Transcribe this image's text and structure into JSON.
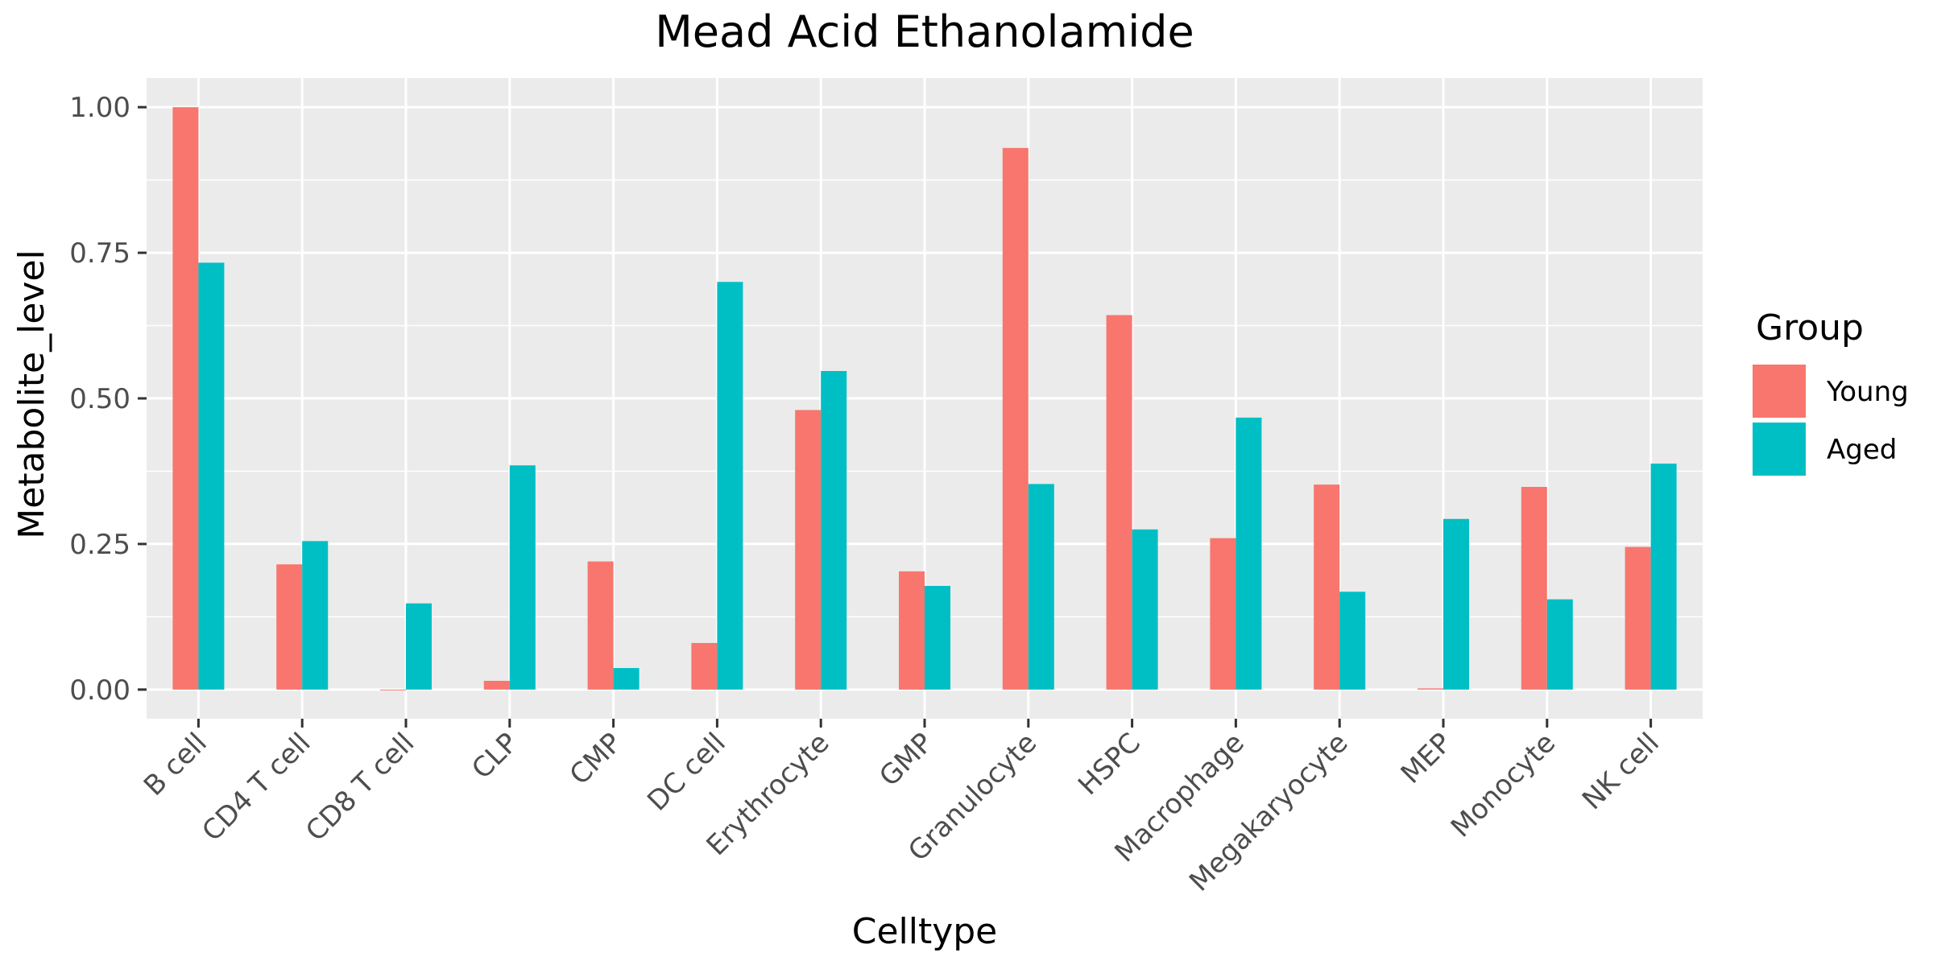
{
  "chart_data": {
    "type": "bar",
    "title": "Mead Acid Ethanolamide",
    "xlabel": "Celltype",
    "ylabel": "Metabolite_level",
    "categories": [
      "B cell",
      "CD4 T cell",
      "CD8 T cell",
      "CLP",
      "CMP",
      "DC cell",
      "Erythrocyte",
      "GMP",
      "Granulocyte",
      "HSPC",
      "Macrophage",
      "Megakaryocyte",
      "MEP",
      "Monocyte",
      "NK cell"
    ],
    "series": [
      {
        "name": "Young",
        "color": "#F8766D",
        "values": [
          1.0,
          0.215,
          0.0,
          0.015,
          0.22,
          0.08,
          0.48,
          0.203,
          0.93,
          0.643,
          0.26,
          0.352,
          0.002,
          0.348,
          0.245
        ]
      },
      {
        "name": "Aged",
        "color": "#00BFC4",
        "values": [
          0.733,
          0.255,
          0.148,
          0.385,
          0.037,
          0.7,
          0.547,
          0.178,
          0.353,
          0.275,
          0.467,
          0.168,
          0.293,
          0.155,
          0.388
        ]
      }
    ],
    "ylim": [
      -0.05,
      1.05
    ],
    "yticks": [
      0.0,
      0.25,
      0.5,
      0.75,
      1.0
    ],
    "ytick_labels": [
      "0.00",
      "0.25",
      "0.50",
      "0.75",
      "1.00"
    ],
    "legend": {
      "title": "Group",
      "placement": "right"
    },
    "grid": true,
    "panel_background": "#EBEBEB",
    "grid_color": "#FFFFFF"
  }
}
